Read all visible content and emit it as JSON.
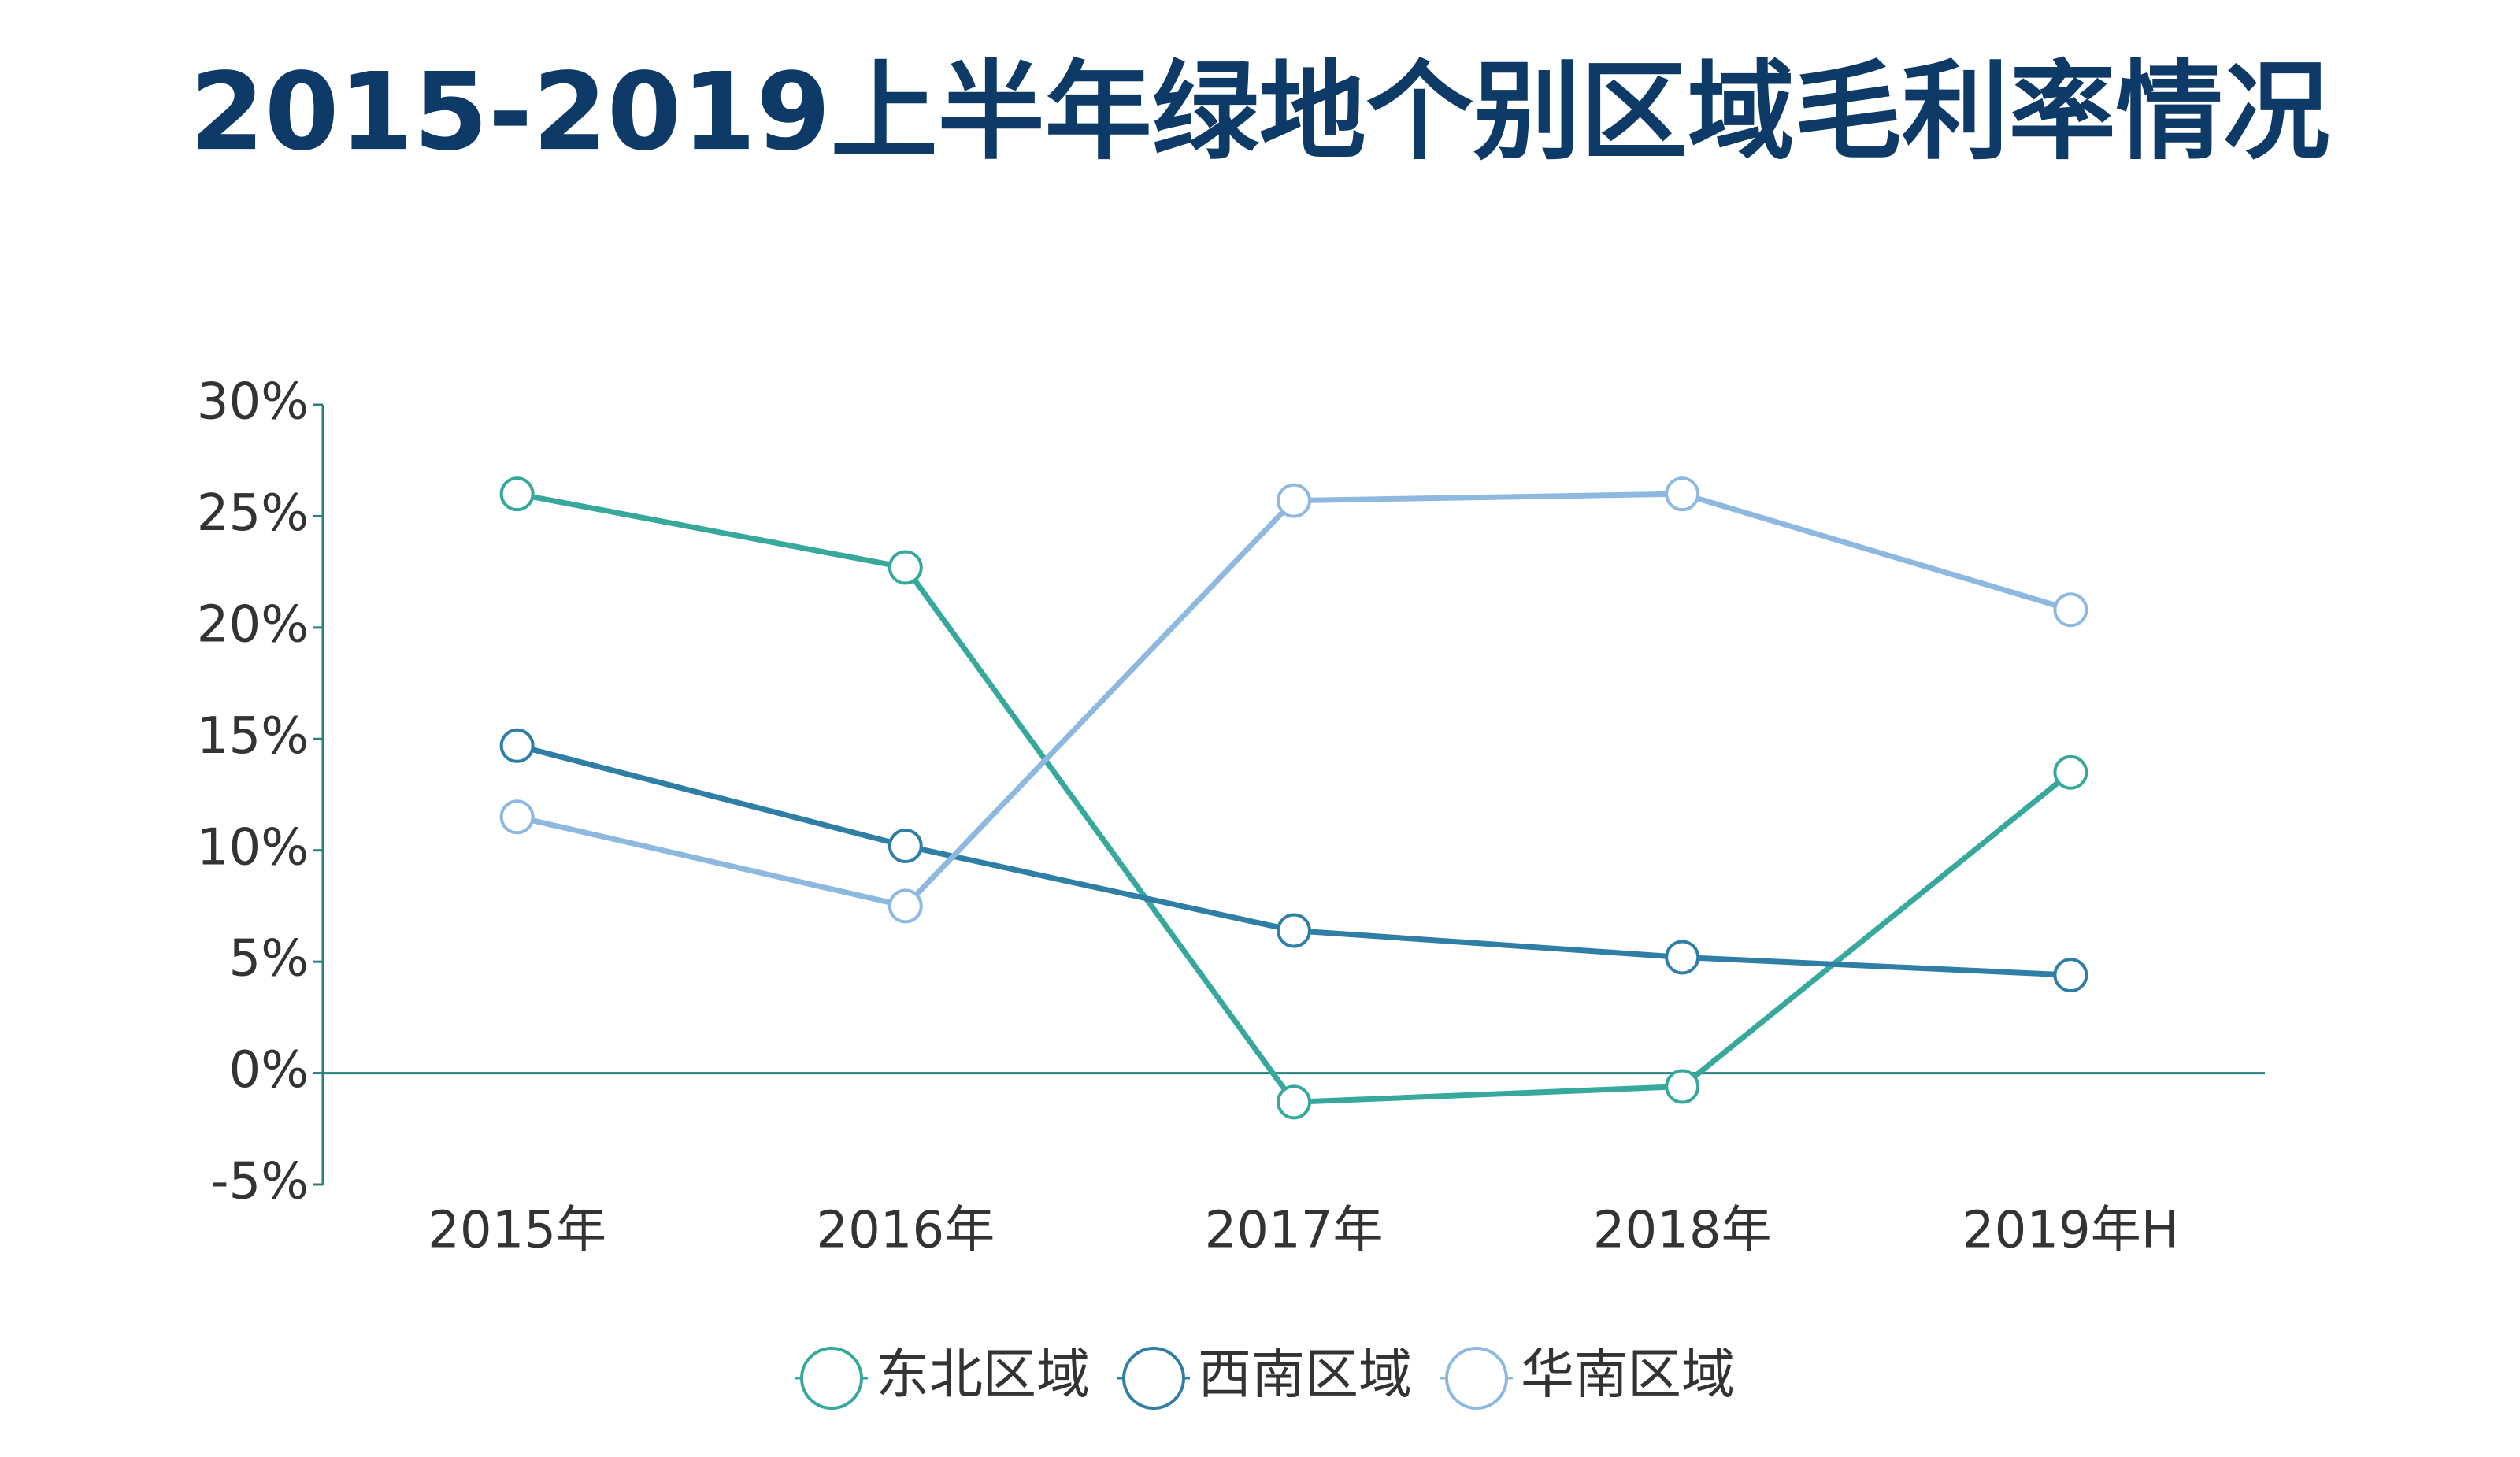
{
  "chart_data": {
    "type": "line",
    "title": "2015-2019上半年绿地个别区域毛利率情况",
    "categories": [
      "2015年",
      "2016年",
      "2017年",
      "2018年",
      "2019年H"
    ],
    "series": [
      {
        "name": "东北区域",
        "color": "#36a89c",
        "values": [
          26.0,
          22.7,
          -1.3,
          -0.6,
          13.5
        ]
      },
      {
        "name": "西南区域",
        "color": "#2e7ea6",
        "values": [
          14.7,
          10.2,
          6.4,
          5.2,
          4.4
        ]
      },
      {
        "name": "华南区域",
        "color": "#8db8e0",
        "values": [
          11.5,
          7.5,
          25.7,
          26.0,
          20.8
        ]
      }
    ],
    "ylim": [
      -5,
      30
    ],
    "yticks": [
      {
        "value": -5,
        "label": "-5%"
      },
      {
        "value": 0,
        "label": "0%"
      },
      {
        "value": 5,
        "label": "5%"
      },
      {
        "value": 10,
        "label": "10%"
      },
      {
        "value": 15,
        "label": "15%"
      },
      {
        "value": 20,
        "label": "20%"
      },
      {
        "value": 25,
        "label": "25%"
      },
      {
        "value": 30,
        "label": "30%"
      }
    ],
    "grid": false,
    "legend": "bottom"
  }
}
